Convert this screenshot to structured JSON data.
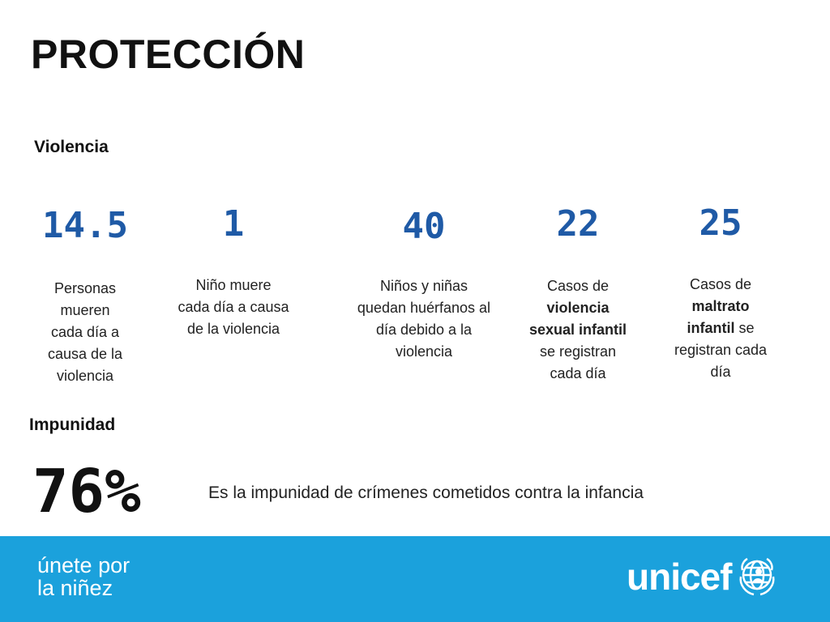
{
  "title": "PROTECCIÓN",
  "violence": {
    "heading": "Violencia",
    "stats": [
      {
        "value": "14.5",
        "text": [
          "Personas",
          "mueren",
          "cada día a",
          "causa de la",
          "violencia"
        ]
      },
      {
        "value": "1",
        "text": [
          "Niño muere",
          "cada día a causa",
          "de la violencia"
        ]
      },
      {
        "value": "40",
        "text": [
          "Niños y niñas",
          "quedan huérfanos al",
          "día debido a la",
          "violencia"
        ]
      },
      {
        "value": "22",
        "text_pre": "Casos de",
        "text_bold": [
          "violencia",
          "sexual infantil"
        ],
        "text_post": [
          "se registran",
          "cada día"
        ]
      },
      {
        "value": "25",
        "text_pre": "Casos de",
        "text_bold": [
          "maltrato"
        ],
        "text_bold2": "infantil",
        "text_bold2_tail": " se",
        "text_post": [
          "registran cada",
          "día"
        ]
      }
    ]
  },
  "impunity": {
    "heading": "Impunidad",
    "value": "76%",
    "text": "Es la impunidad de crímenes cometidos contra la infancia"
  },
  "footer": {
    "slogan_line1": "únete por",
    "slogan_line2": "la niñez",
    "logo_text": "unicef",
    "background_color": "#1ba1dc"
  },
  "colors": {
    "stat_number": "#1f5aa6",
    "text": "#222222"
  }
}
